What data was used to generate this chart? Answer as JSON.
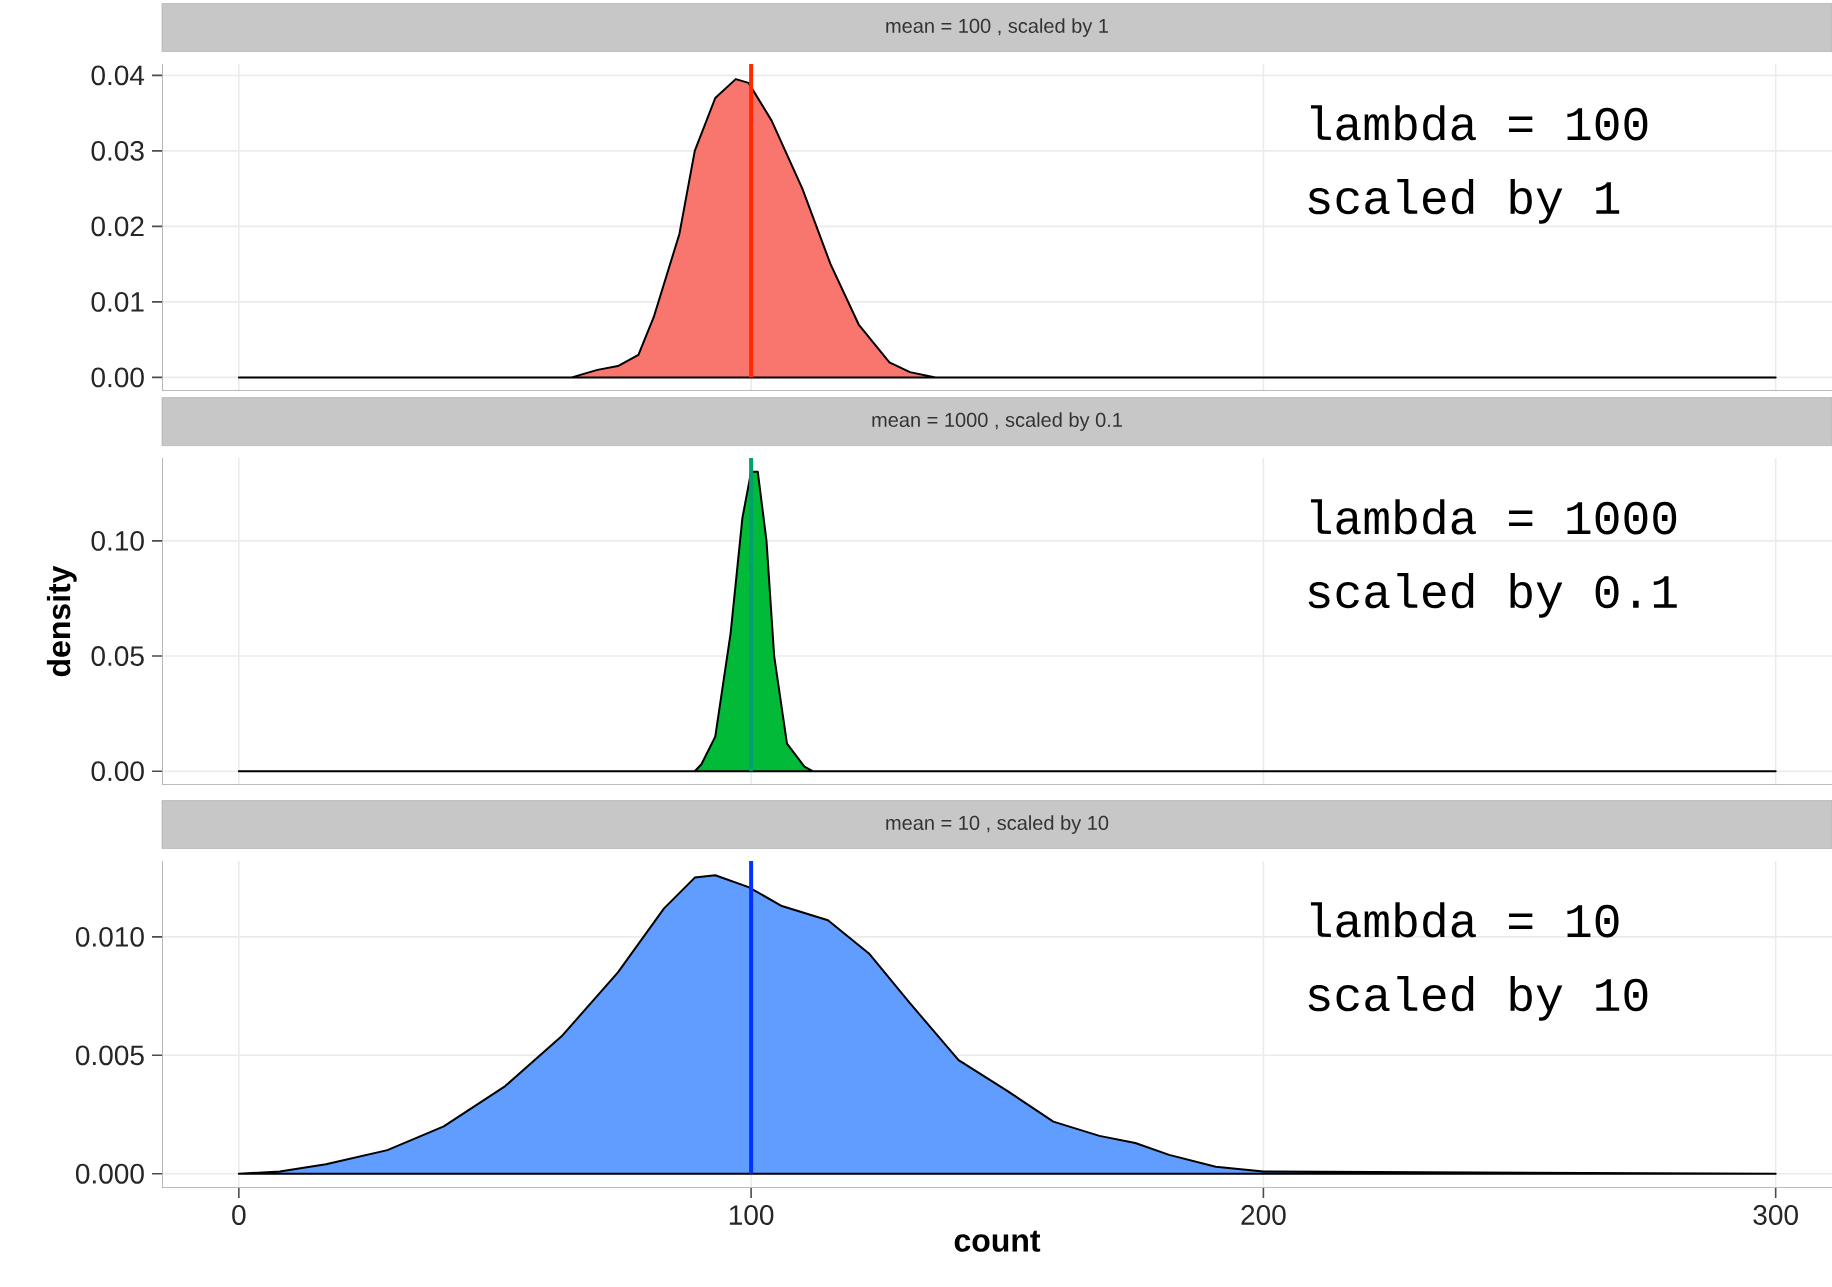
{
  "chart_data": [
    {
      "type": "area",
      "title": "mean = 100 , scaled by 1",
      "x": [
        0,
        65,
        70,
        74,
        78,
        81,
        86,
        89,
        93,
        97,
        99.5,
        104,
        110,
        115.5,
        121,
        127,
        131,
        136,
        300
      ],
      "series": [
        {
          "color": "#f8766d",
          "values": [
            0,
            0,
            0.001,
            0.0015,
            0.003,
            0.008,
            0.019,
            0.03,
            0.037,
            0.0395,
            0.039,
            0.034,
            0.025,
            0.015,
            0.007,
            0.002,
            0.0007,
            0,
            0
          ]
        }
      ],
      "xlim": [
        -15,
        311
      ],
      "ylim": [
        -0.0018,
        0.0415
      ],
      "xticks": [
        0,
        100,
        200,
        300
      ],
      "yticks": [
        {
          "value": 0,
          "label": "0.00"
        },
        0.01,
        0.02,
        0.03,
        0.04
      ],
      "ref_lines": [
        {
          "axis": "x",
          "value": 100,
          "color": "#ff2a00"
        }
      ],
      "annotations": [
        "lambda = 100",
        "scaled by 1"
      ],
      "grid": true,
      "tick_labels": "y"
    },
    {
      "type": "area",
      "title": "mean = 1000 , scaled by 0.1",
      "x": [
        0,
        89,
        90.3,
        93,
        96,
        98.3,
        100,
        101.3,
        103,
        104.5,
        107,
        110.4,
        112,
        300
      ],
      "series": [
        {
          "color": "#00ba38",
          "values": [
            0,
            0,
            0.003,
            0.015,
            0.06,
            0.11,
            0.13,
            0.13,
            0.1,
            0.05,
            0.012,
            0.002,
            0,
            0
          ]
        }
      ],
      "xlim": [
        -15,
        311
      ],
      "ylim": [
        -0.006,
        0.136
      ],
      "xticks": [
        0,
        100,
        200,
        300
      ],
      "yticks": [
        {
          "value": 0,
          "label": "0.00"
        },
        0.05,
        {
          "value": 0.1,
          "label": "0.10"
        }
      ],
      "ref_lines": [
        {
          "axis": "x",
          "value": 100,
          "color": "#00a070"
        }
      ],
      "annotations": [
        "lambda = 1000",
        "scaled by 0.1"
      ],
      "ylabel": "density",
      "grid": true,
      "tick_labels": "y"
    },
    {
      "type": "area",
      "title": "mean = 10 , scaled by 10",
      "x": [
        0,
        8,
        17,
        29,
        40,
        52,
        63,
        74,
        83,
        89,
        93,
        99.5,
        106,
        115,
        123,
        131,
        140.5,
        150,
        159,
        168,
        175,
        181.6,
        190.7,
        200,
        300
      ],
      "series": [
        {
          "color": "#619cff",
          "values": [
            0,
            0.0001,
            0.0004,
            0.001,
            0.002,
            0.0037,
            0.0058,
            0.0085,
            0.0112,
            0.0125,
            0.0126,
            0.0121,
            0.0113,
            0.0107,
            0.0093,
            0.0072,
            0.0048,
            0.0035,
            0.0022,
            0.0016,
            0.0013,
            0.0008,
            0.0003,
            0.0001,
            0
          ]
        }
      ],
      "xlim": [
        -15,
        311
      ],
      "ylim": [
        -0.0006,
        0.0132
      ],
      "xticks": [
        0,
        100,
        200,
        300
      ],
      "yticks": [
        {
          "value": 0,
          "label": "0.000"
        },
        {
          "value": 0.005,
          "label": "0.005"
        },
        {
          "value": 0.01,
          "label": "0.010"
        }
      ],
      "ref_lines": [
        {
          "axis": "x",
          "value": 100,
          "color": "#0033ff"
        }
      ],
      "annotations": [
        "lambda = 10",
        "scaled by 10"
      ],
      "xlabel": "count",
      "grid": true
    }
  ]
}
